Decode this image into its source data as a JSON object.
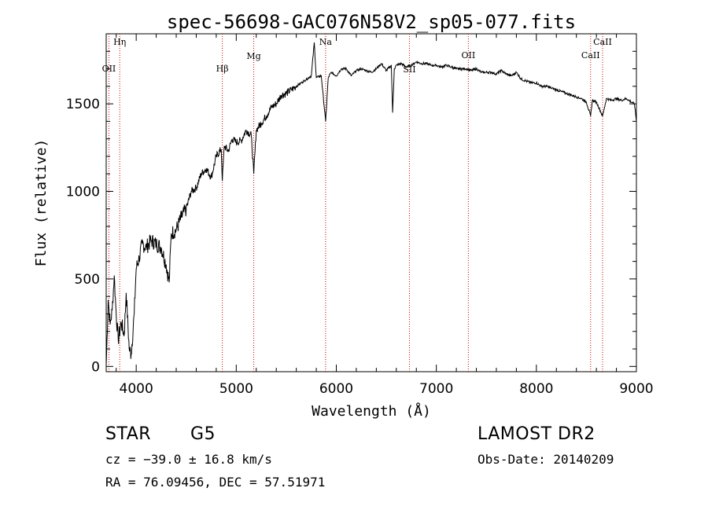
{
  "chart_data": {
    "type": "line",
    "title": "spec-56698-GAC076N58V2_sp05-077.fits",
    "xlabel": "Wavelength (Å)",
    "ylabel": "Flux (relative)",
    "xlim": [
      3700,
      9000
    ],
    "ylim": [
      -30,
      1900
    ],
    "x_ticks": [
      4000,
      5000,
      6000,
      7000,
      8000,
      9000
    ],
    "y_ticks": [
      0,
      500,
      1000,
      1500
    ],
    "line_color": "#000000",
    "marker_color": "#cc0000",
    "series": [
      {
        "x": [
          3700,
          3720,
          3740,
          3760,
          3780,
          3800,
          3820,
          3850,
          3880,
          3900,
          3930,
          3950,
          3980,
          4000,
          4030,
          4060,
          4100,
          4150,
          4200,
          4250,
          4300,
          4330,
          4350,
          4400,
          4450,
          4500,
          4550,
          4600,
          4650,
          4700,
          4750,
          4800,
          4850,
          4861,
          4880,
          4920,
          4960,
          5000,
          5050,
          5100,
          5150,
          5175,
          5200,
          5250,
          5300,
          5350,
          5400,
          5450,
          5500,
          5550,
          5600,
          5650,
          5700,
          5750,
          5780,
          5800,
          5850,
          5893,
          5920,
          5950,
          6000,
          6050,
          6100,
          6150,
          6200,
          6250,
          6300,
          6350,
          6400,
          6450,
          6500,
          6550,
          6563,
          6580,
          6600,
          6650,
          6700,
          6750,
          6800,
          6850,
          6900,
          6950,
          7000,
          7050,
          7100,
          7150,
          7200,
          7250,
          7300,
          7350,
          7400,
          7450,
          7500,
          7550,
          7600,
          7650,
          7700,
          7750,
          7800,
          7850,
          7900,
          7950,
          8000,
          8050,
          8100,
          8150,
          8200,
          8250,
          8300,
          8350,
          8400,
          8450,
          8500,
          8542,
          8560,
          8600,
          8662,
          8700,
          8750,
          8800,
          8850,
          8900,
          8950,
          8980,
          9000
        ],
        "y": [
          0,
          380,
          240,
          320,
          520,
          300,
          150,
          250,
          180,
          420,
          100,
          70,
          300,
          560,
          620,
          700,
          680,
          720,
          700,
          680,
          580,
          480,
          760,
          780,
          850,
          900,
          1000,
          1020,
          1100,
          1130,
          1080,
          1200,
          1240,
          1060,
          1260,
          1230,
          1300,
          1280,
          1290,
          1350,
          1320,
          1100,
          1350,
          1390,
          1430,
          1480,
          1500,
          1550,
          1560,
          1580,
          1600,
          1620,
          1640,
          1660,
          1850,
          1650,
          1660,
          1400,
          1650,
          1680,
          1660,
          1700,
          1700,
          1660,
          1690,
          1700,
          1690,
          1680,
          1700,
          1730,
          1690,
          1720,
          1450,
          1700,
          1720,
          1730,
          1710,
          1720,
          1740,
          1730,
          1730,
          1720,
          1720,
          1710,
          1720,
          1710,
          1700,
          1700,
          1700,
          1690,
          1700,
          1680,
          1680,
          1680,
          1670,
          1690,
          1670,
          1660,
          1680,
          1640,
          1630,
          1620,
          1620,
          1600,
          1600,
          1590,
          1580,
          1570,
          1560,
          1550,
          1540,
          1530,
          1510,
          1430,
          1520,
          1510,
          1430,
          1530,
          1520,
          1530,
          1520,
          1530,
          1510,
          1500,
          1400
        ]
      }
    ],
    "line_markers": [
      {
        "label": "OII",
        "x": 3727
      },
      {
        "label": "Hη",
        "x": 3835
      },
      {
        "label": "Hβ",
        "x": 4861
      },
      {
        "label": "Mg",
        "x": 5175
      },
      {
        "label": "Na",
        "x": 5893
      },
      {
        "label": "OII",
        "x": 7320
      },
      {
        "label": "SII",
        "x": 6731
      },
      {
        "label": "CaII",
        "x": 8542
      },
      {
        "label": "CaII",
        "x": 8662
      }
    ]
  },
  "info": {
    "object_class": "STAR",
    "subclass": "G5",
    "survey": "LAMOST DR2",
    "cz": "cz = −39.0 ± 16.8 km/s",
    "obs_date": "Obs-Date: 20140209",
    "coords": "RA =  76.09456, DEC =  57.51971"
  }
}
